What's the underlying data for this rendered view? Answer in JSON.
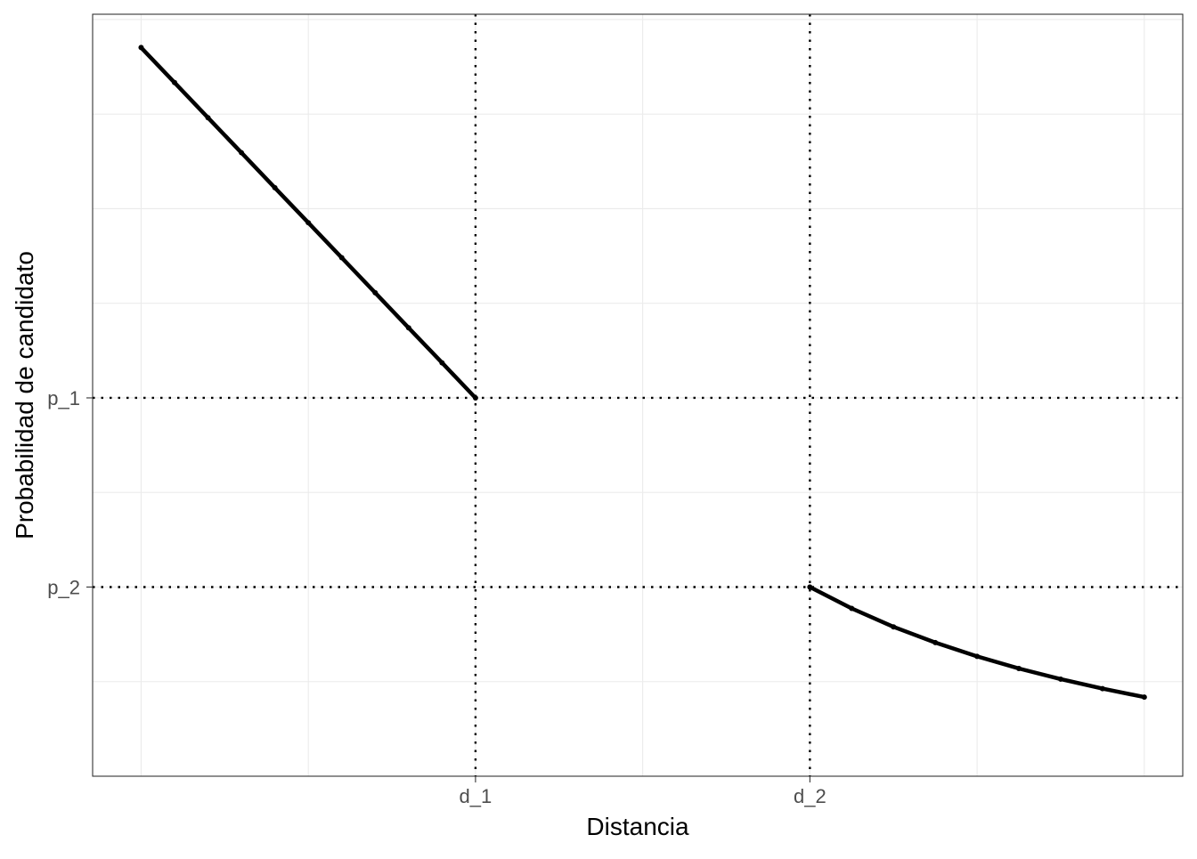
{
  "chart_data": {
    "type": "line",
    "xlabel": "Distancia",
    "ylabel": "Probabilidad de candidato",
    "x_ticks": [
      {
        "label": "d_1",
        "value": 2
      },
      {
        "label": "d_2",
        "value": 4
      }
    ],
    "y_ticks": [
      {
        "label": "p_1",
        "value": 0.5
      },
      {
        "label": "p_2",
        "value": 0.25
      }
    ],
    "xlim": [
      -0.29,
      6.23
    ],
    "ylim": [
      0.0,
      1.007
    ],
    "grid": true,
    "reference_lines": {
      "vertical": [
        2,
        4
      ],
      "horizontal": [
        0.5,
        0.25
      ],
      "style": "dotted"
    },
    "series": [
      {
        "color": "#000000",
        "x": [
          0.0,
          0.2,
          0.4,
          0.6,
          0.8,
          1.0,
          1.2,
          1.4,
          1.6,
          1.8,
          2.0
        ],
        "y": [
          0.963,
          0.9167,
          0.8703,
          0.824,
          0.7777,
          0.7315,
          0.6852,
          0.6389,
          0.5926,
          0.5463,
          0.5
        ]
      },
      {
        "color": "#000000",
        "x": [
          4.0,
          4.25,
          4.5,
          4.75,
          5.0,
          5.25,
          5.5,
          5.75,
          6.0
        ],
        "y": [
          0.25,
          0.2217,
          0.1974,
          0.1766,
          0.1584,
          0.1424,
          0.1283,
          0.1157,
          0.1046
        ]
      }
    ]
  }
}
